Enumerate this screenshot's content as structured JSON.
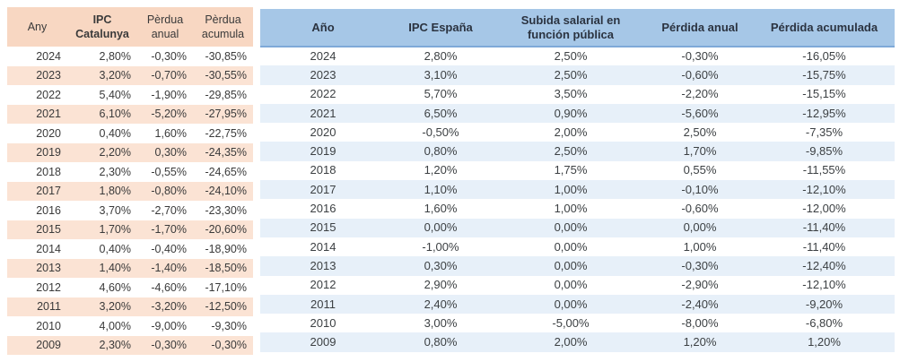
{
  "colors": {
    "left_header_bg": "#f8d7c2",
    "left_stripe_bg": "#fbe3d4",
    "right_header_bg": "#a6c7e7",
    "right_stripe_bg": "#e7f0f9",
    "right_header_border": "#7ea9d8",
    "text": "#3a3a3a"
  },
  "left_table": {
    "headers": [
      "Any",
      "IPC Catalunya",
      "Pèrdua anual",
      "Pèrdua acumula"
    ],
    "rows": [
      [
        "2024",
        "2,80%",
        "-0,30%",
        "-30,85%"
      ],
      [
        "2023",
        "3,20%",
        "-0,70%",
        "-30,55%"
      ],
      [
        "2022",
        "5,40%",
        "-1,90%",
        "-29,85%"
      ],
      [
        "2021",
        "6,10%",
        "-5,20%",
        "-27,95%"
      ],
      [
        "2020",
        "0,40%",
        "1,60%",
        "-22,75%"
      ],
      [
        "2019",
        "2,20%",
        "0,30%",
        "-24,35%"
      ],
      [
        "2018",
        "2,30%",
        "-0,55%",
        "-24,65%"
      ],
      [
        "2017",
        "1,80%",
        "-0,80%",
        "-24,10%"
      ],
      [
        "2016",
        "3,70%",
        "-2,70%",
        "-23,30%"
      ],
      [
        "2015",
        "1,70%",
        "-1,70%",
        "-20,60%"
      ],
      [
        "2014",
        "0,40%",
        "-0,40%",
        "-18,90%"
      ],
      [
        "2013",
        "1,40%",
        "-1,40%",
        "-18,50%"
      ],
      [
        "2012",
        "4,60%",
        "-4,60%",
        "-17,10%"
      ],
      [
        "2011",
        "3,20%",
        "-3,20%",
        "-12,50%"
      ],
      [
        "2010",
        "4,00%",
        "-9,00%",
        "-9,30%"
      ],
      [
        "2009",
        "2,30%",
        "-0,30%",
        "-0,30%"
      ]
    ]
  },
  "right_table": {
    "headers": [
      "Año",
      "IPC España",
      "Subida salarial en función pública",
      "Pérdida anual",
      "Pérdida acumulada"
    ],
    "rows": [
      [
        "2024",
        "2,80%",
        "2,50%",
        "-0,30%",
        "-16,05%"
      ],
      [
        "2023",
        "3,10%",
        "2,50%",
        "-0,60%",
        "-15,75%"
      ],
      [
        "2022",
        "5,70%",
        "3,50%",
        "-2,20%",
        "-15,15%"
      ],
      [
        "2021",
        "6,50%",
        "0,90%",
        "-5,60%",
        "-12,95%"
      ],
      [
        "2020",
        "-0,50%",
        "2,00%",
        "2,50%",
        "-7,35%"
      ],
      [
        "2019",
        "0,80%",
        "2,50%",
        "1,70%",
        "-9,85%"
      ],
      [
        "2018",
        "1,20%",
        "1,75%",
        "0,55%",
        "-11,55%"
      ],
      [
        "2017",
        "1,10%",
        "1,00%",
        "-0,10%",
        "-12,10%"
      ],
      [
        "2016",
        "1,60%",
        "1,00%",
        "-0,60%",
        "-12,00%"
      ],
      [
        "2015",
        "0,00%",
        "0,00%",
        "0,00%",
        "-11,40%"
      ],
      [
        "2014",
        "-1,00%",
        "0,00%",
        "1,00%",
        "-11,40%"
      ],
      [
        "2013",
        "0,30%",
        "0,00%",
        "-0,30%",
        "-12,40%"
      ],
      [
        "2012",
        "2,90%",
        "0,00%",
        "-2,90%",
        "-12,10%"
      ],
      [
        "2011",
        "2,40%",
        "0,00%",
        "-2,40%",
        "-9,20%"
      ],
      [
        "2010",
        "3,00%",
        "-5,00%",
        "-8,00%",
        "-6,80%"
      ],
      [
        "2009",
        "0,80%",
        "2,00%",
        "1,20%",
        "1,20%"
      ]
    ]
  }
}
